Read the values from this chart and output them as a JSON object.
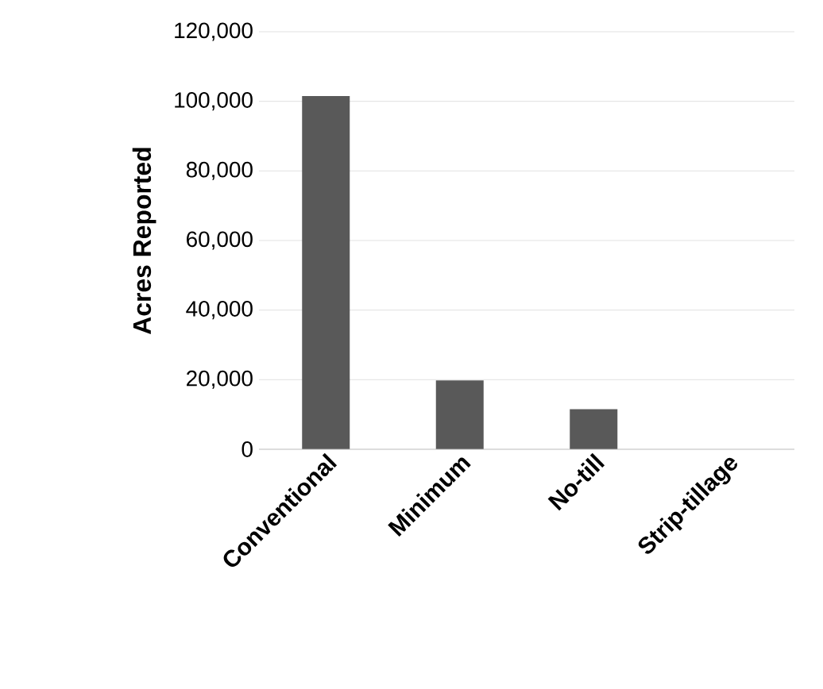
{
  "chart_data": {
    "type": "bar",
    "ylabel": "Acres Reported",
    "categories": [
      "Conventional",
      "Minimum",
      "No-till",
      "Strip-tillage"
    ],
    "values": [
      101500,
      19800,
      11500,
      0
    ],
    "color": "#595959",
    "ylim": [
      0,
      120000
    ],
    "yticks": [
      {
        "value": 0,
        "label": "0"
      },
      {
        "value": 20000,
        "label": "20,000"
      },
      {
        "value": 40000,
        "label": "40,000"
      },
      {
        "value": 60000,
        "label": "60,000"
      },
      {
        "value": 80000,
        "label": "80,000"
      },
      {
        "value": 100000,
        "label": "100,000"
      },
      {
        "value": 120000,
        "label": "120,000"
      }
    ],
    "grid": "y"
  }
}
